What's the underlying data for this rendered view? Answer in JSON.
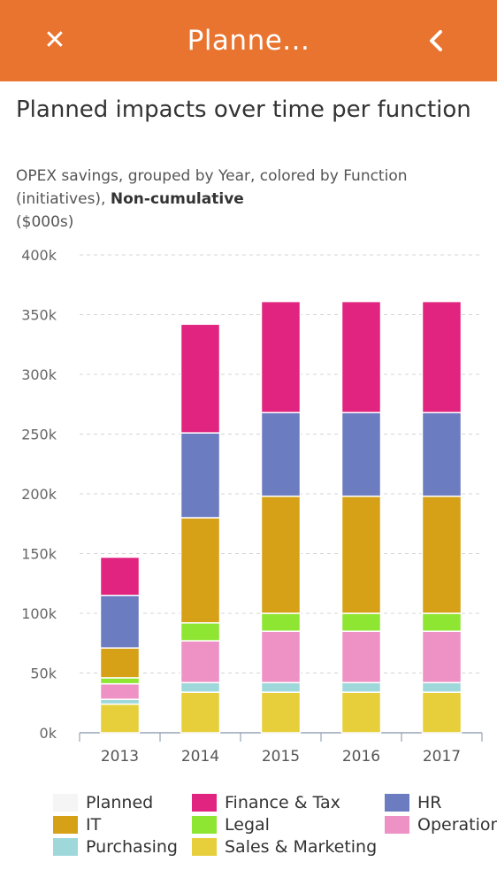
{
  "header": {
    "title": "Planne...",
    "close_icon": "close-icon",
    "back_icon": "chevron-left-icon",
    "color": "#e8742f"
  },
  "chart_title": "Planned impacts over time per function",
  "subtitle": {
    "prefix": "OPEX savings, grouped by Year, colored by Function (initiatives),",
    "bold": "Non-cumulative",
    "suffix": "($000s)"
  },
  "chart_data": {
    "type": "bar",
    "stacked": true,
    "categories": [
      "2013",
      "2014",
      "2015",
      "2016",
      "2017"
    ],
    "ylim": [
      0,
      400000
    ],
    "yticks": [
      "0k",
      "50k",
      "100k",
      "150k",
      "200k",
      "250k",
      "300k",
      "350k",
      "400k"
    ],
    "grid": true,
    "legend_position": "bottom",
    "series": [
      {
        "name": "Planned",
        "color": "#f5f5f5",
        "values": [
          0,
          0,
          0,
          0,
          0
        ]
      },
      {
        "name": "Sales & Marketing",
        "color": "#e6cf3a",
        "values": [
          24000,
          34000,
          34000,
          34000,
          34000
        ]
      },
      {
        "name": "Purchasing",
        "color": "#9fd8db",
        "values": [
          4000,
          8000,
          8000,
          8000,
          8000
        ]
      },
      {
        "name": "Operations",
        "color": "#ee92c6",
        "values": [
          13000,
          35000,
          43000,
          43000,
          43000
        ]
      },
      {
        "name": "Legal",
        "color": "#8ee632",
        "values": [
          5000,
          15000,
          15000,
          15000,
          15000
        ]
      },
      {
        "name": "IT",
        "color": "#d6a117",
        "values": [
          25000,
          88000,
          98000,
          98000,
          98000
        ]
      },
      {
        "name": "HR",
        "color": "#6c7cc1",
        "values": [
          44000,
          71000,
          70000,
          70000,
          70000
        ]
      },
      {
        "name": "Finance & Tax",
        "color": "#e0247f",
        "values": [
          32000,
          91000,
          93000,
          93000,
          93000
        ]
      }
    ]
  },
  "legend": [
    {
      "label": "Planned",
      "color": "#f5f5f5"
    },
    {
      "label": "Finance & Tax",
      "color": "#e0247f"
    },
    {
      "label": "HR",
      "color": "#6c7cc1"
    },
    {
      "label": "IT",
      "color": "#d6a117"
    },
    {
      "label": "Legal",
      "color": "#8ee632"
    },
    {
      "label": "Operations",
      "color": "#ee92c6"
    },
    {
      "label": "Purchasing",
      "color": "#9fd8db"
    },
    {
      "label": "Sales & Marketing",
      "color": "#e6cf3a"
    }
  ]
}
